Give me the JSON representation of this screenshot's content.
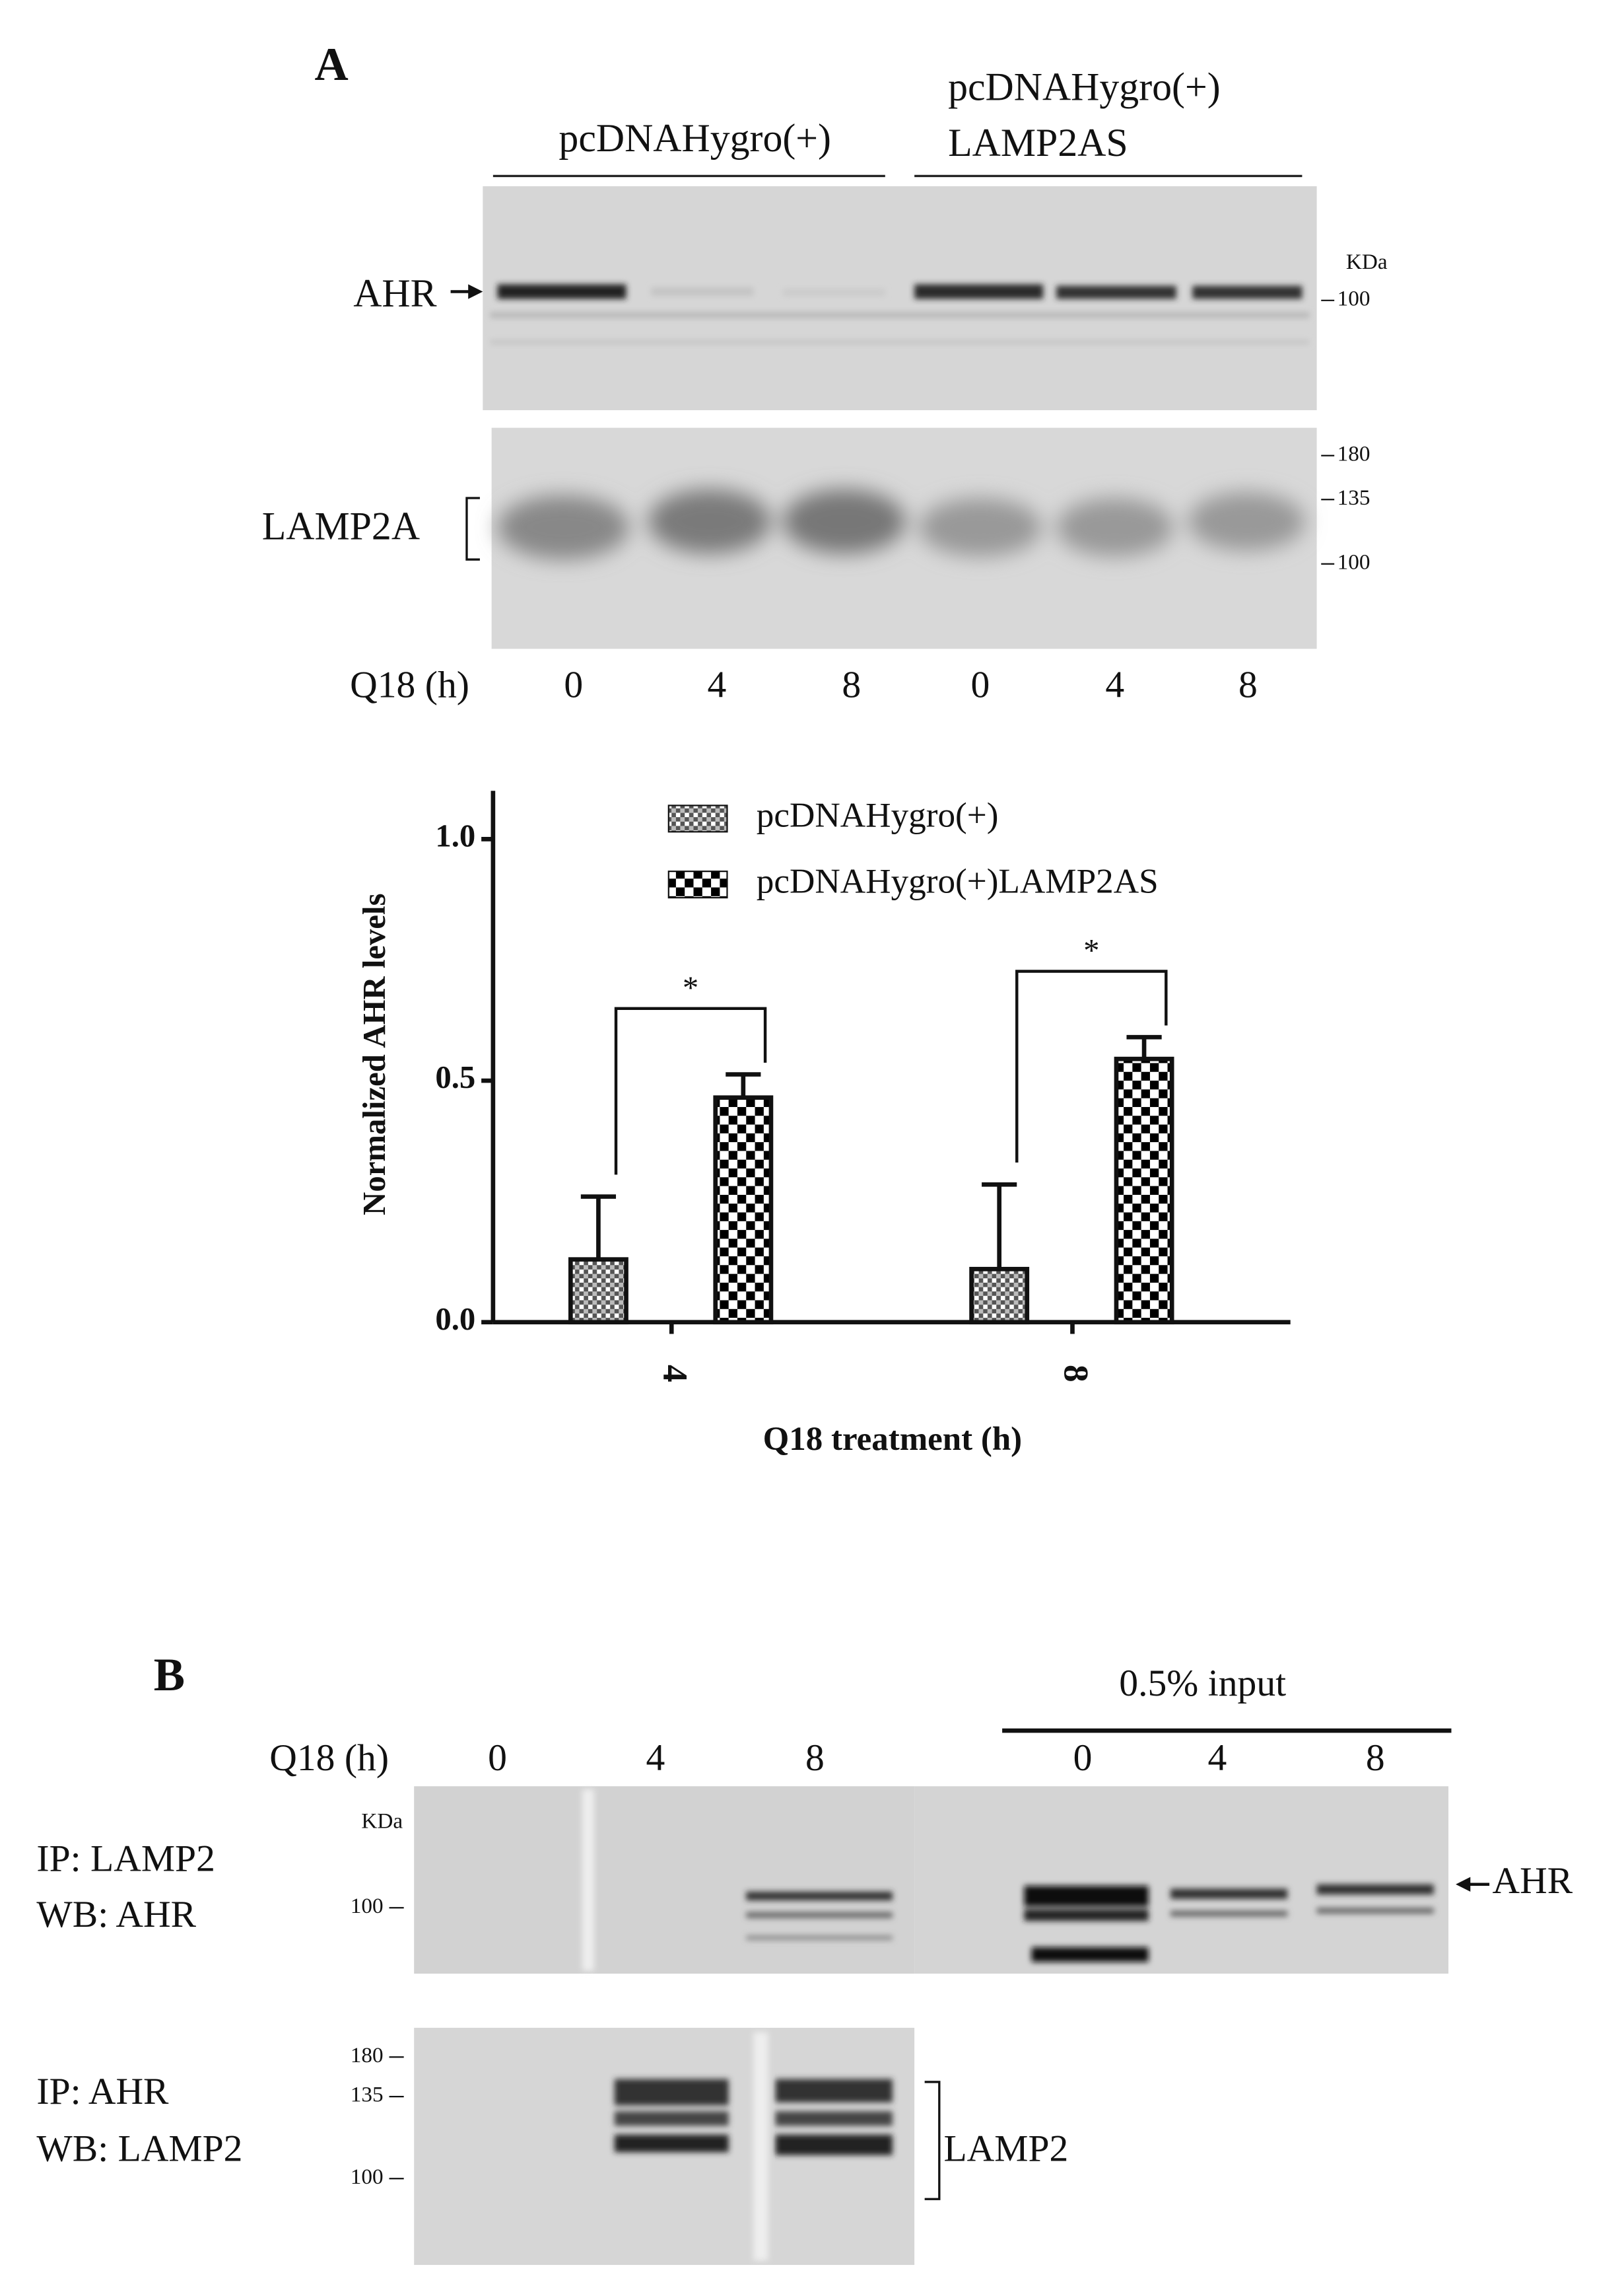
{
  "panel_a": {
    "label": "A",
    "group_1": "pcDNAHygro(+)",
    "group_2_lines": [
      "pcDNAHygro(+)",
      "LAMP2AS"
    ],
    "blot_rows": [
      "AHR",
      "LAMP2A"
    ],
    "kda": "KDa",
    "markers_top": [
      "100"
    ],
    "markers_bottom": [
      "180",
      "135",
      "100"
    ],
    "lane_title": "Q18 (h)",
    "lanes": [
      "0",
      "4",
      "8",
      "0",
      "4",
      "8"
    ]
  },
  "chart_data": {
    "type": "bar",
    "ylabel": "Normalized AHR levels",
    "xlabel": "Q18 treatment (h)",
    "categories": [
      "4",
      "8"
    ],
    "series": [
      {
        "name": "pcDNAHygro(+)",
        "color": "#555555",
        "pattern": "crosshatch",
        "values": [
          0.13,
          0.11
        ],
        "errors": [
          0.13,
          0.175
        ]
      },
      {
        "name": "pcDNAHygro(+)LAMP2AS",
        "color": "#000000",
        "pattern": "checker",
        "values": [
          0.465,
          0.545
        ],
        "errors": [
          0.048,
          0.045
        ]
      }
    ],
    "annotations": [
      "*",
      "*"
    ],
    "ylim": [
      0,
      1.1
    ],
    "yticks": [
      {
        "value": 0,
        "label": "0.0"
      },
      {
        "value": 0.5,
        "label": "0.5"
      },
      {
        "value": 1,
        "label": "1.0"
      }
    ]
  },
  "panel_b": {
    "label": "B",
    "input_label": "0.5% input",
    "lane_title": "Q18 (h)",
    "lanes": [
      "0",
      "4",
      "8",
      "0",
      "4",
      "8"
    ],
    "kda": "KDa",
    "markers_top": [
      "100"
    ],
    "markers_bottom": [
      "180",
      "135",
      "100"
    ],
    "rows": [
      {
        "ip": "IP: LAMP2",
        "wb": "WB: AHR",
        "target": "AHR"
      },
      {
        "ip": "IP: AHR",
        "wb": "WB: LAMP2",
        "target": "LAMP2"
      }
    ]
  }
}
